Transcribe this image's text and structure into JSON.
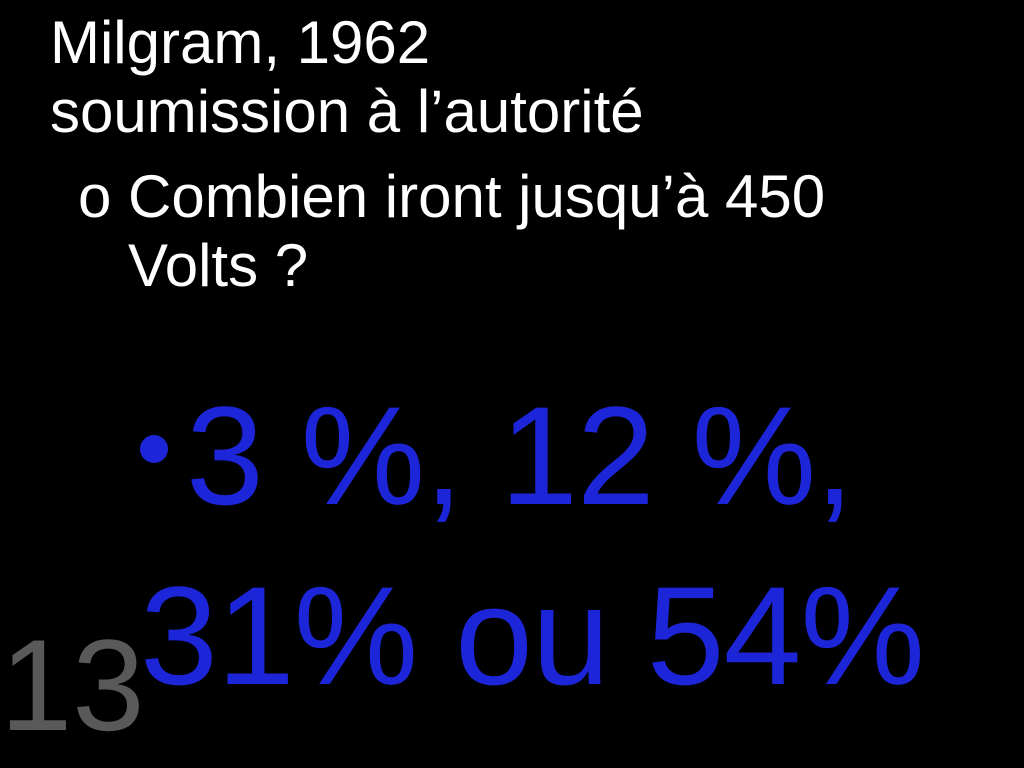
{
  "colors": {
    "background": "#000000",
    "title_text": "#ffffff",
    "bullet_text": "#ffffff",
    "answer_text": "#1d25d8",
    "answer_bullet": "#1d25d8",
    "slide_number": "#595959"
  },
  "typography": {
    "title_fontsize": 60,
    "bullet_fontsize": 60,
    "answer_fontsize": 140,
    "slide_number_fontsize": 130,
    "font_family": "Arial"
  },
  "title": {
    "line1": "Milgram, 1962",
    "line2": "soumission à l’autorité"
  },
  "bullet": {
    "marker": "o",
    "text": "Combien iront jusqu’à 450 Volts ?"
  },
  "answers": {
    "line1": "3 %, 12 %,",
    "line2": "31% ou 54%"
  },
  "slide_number": "13"
}
